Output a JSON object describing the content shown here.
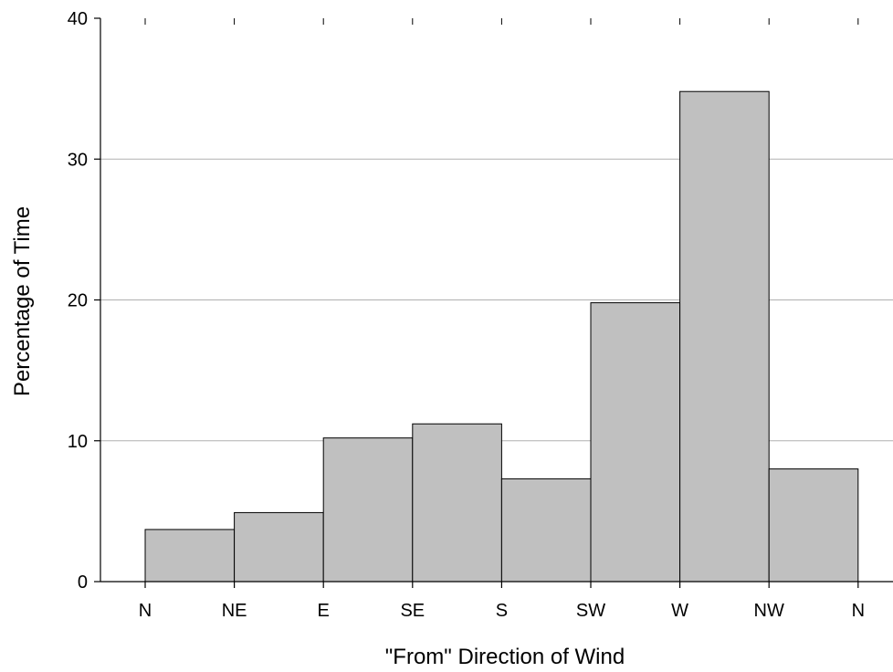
{
  "chart_data": {
    "type": "bar",
    "title": "",
    "xlabel": "\"From\" Direction of Wind",
    "ylabel": "Percentage of Time",
    "x_tick_labels": [
      "N",
      "NE",
      "E",
      "SE",
      "S",
      "SW",
      "W",
      "NW",
      "N"
    ],
    "categories": [
      "N-NE",
      "NE-E",
      "E-SE",
      "SE-S",
      "S-SW",
      "SW-W",
      "W-NW",
      "NW-N"
    ],
    "values": [
      3.7,
      4.9,
      10.2,
      11.2,
      7.3,
      19.8,
      34.8,
      8.0
    ],
    "ylim": [
      0,
      40
    ],
    "y_ticks": [
      0,
      10,
      20,
      30,
      40
    ],
    "grid": true,
    "colors": {
      "bar_fill": "#c0c0c0",
      "bar_stroke": "#000000",
      "grid": "#b0b0b0",
      "axis": "#000000"
    }
  }
}
